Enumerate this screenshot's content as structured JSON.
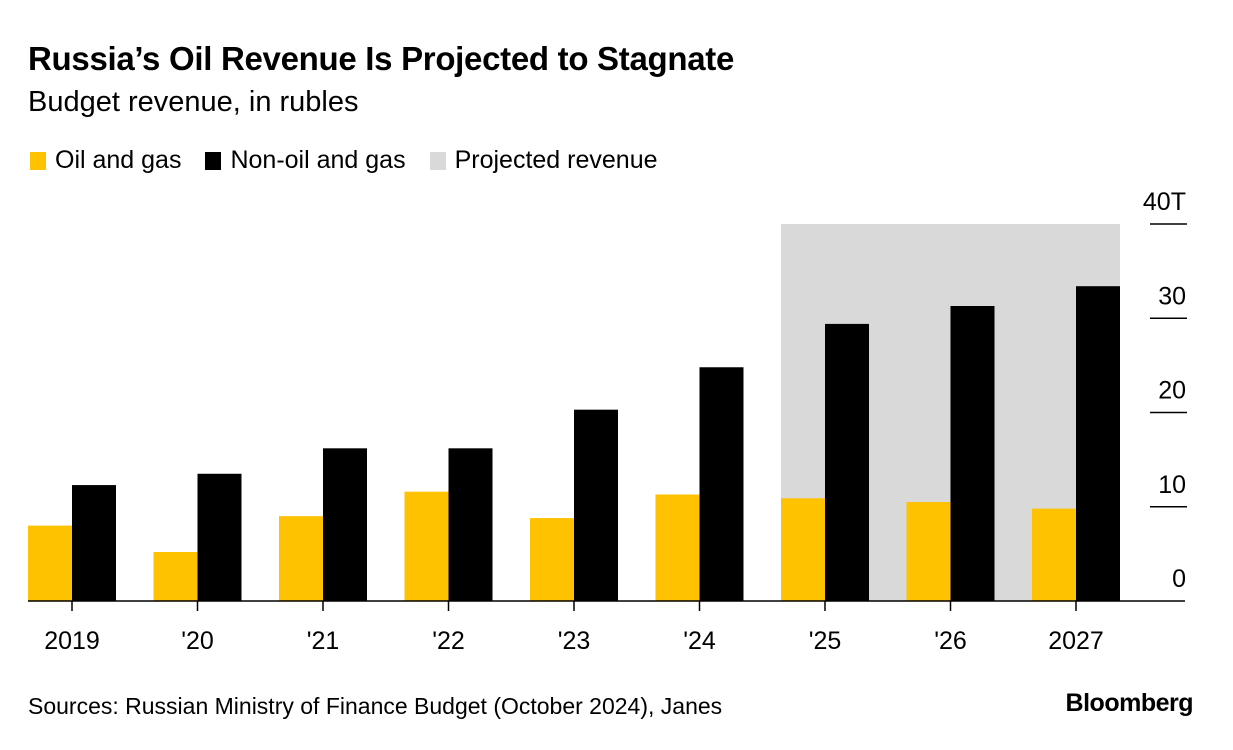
{
  "header": {
    "title": "Russia’s Oil Revenue Is Projected to Stagnate",
    "subtitle": "Budget revenue, in rubles"
  },
  "legend": [
    {
      "label": "Oil and gas",
      "color": "#FFC200"
    },
    {
      "label": "Non-oil and gas",
      "color": "#000000"
    },
    {
      "label": "Projected revenue",
      "color": "#D9D9D9"
    }
  ],
  "footer": {
    "source": "Sources: Russian Ministry of Finance Budget (October 2024), Janes",
    "brand": "Bloomberg"
  },
  "chart_data": {
    "type": "bar",
    "title": "Russia’s Oil Revenue Is Projected to Stagnate",
    "subtitle": "Budget revenue, in rubles",
    "xlabel": "",
    "ylabel": "",
    "categories": [
      "2019",
      "'20",
      "'21",
      "'22",
      "'23",
      "'24",
      "'25",
      "'26",
      "2027"
    ],
    "series": [
      {
        "name": "Oil and gas",
        "color": "#FFC200",
        "values": [
          8.0,
          5.2,
          9.0,
          11.6,
          8.8,
          11.3,
          10.9,
          10.5,
          9.8
        ]
      },
      {
        "name": "Non-oil and gas",
        "color": "#000000",
        "values": [
          12.3,
          13.5,
          16.2,
          16.2,
          20.3,
          24.8,
          29.4,
          31.3,
          33.4
        ]
      }
    ],
    "projected_range": {
      "from": "'25",
      "to": "2027",
      "label": "Projected revenue",
      "color": "#D9D9D9"
    },
    "ylim": [
      0,
      40
    ],
    "yticks": [
      0,
      10,
      20,
      30,
      40
    ],
    "ytick_labels": [
      "0",
      "10",
      "20",
      "30",
      "40T"
    ],
    "y_axis_side": "right",
    "units": "trillion rubles",
    "grid": false,
    "legend_position": "top-left"
  }
}
